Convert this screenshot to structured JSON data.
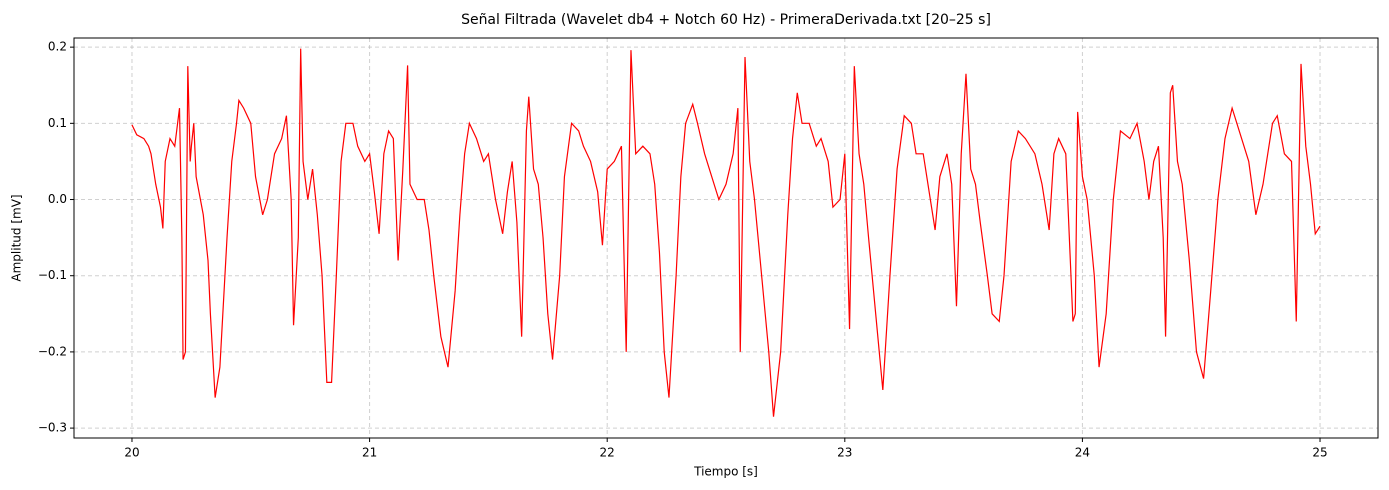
{
  "chart_data": {
    "type": "line",
    "title": "Señal Filtrada (Wavelet db4 + Notch 60 Hz) - PrimeraDerivada.txt [20–25 s]",
    "x_label": "Tiempo [s]",
    "y_label": "Amplitud [mV]",
    "xlim": [
      19.756,
      25.244
    ],
    "ylim": [
      -0.313,
      0.212
    ],
    "xticks": [
      20,
      21,
      22,
      23,
      24,
      25
    ],
    "yticks": [
      {
        "value": -0.3,
        "label": "−0.3"
      },
      {
        "value": -0.2,
        "label": "−0.2"
      },
      {
        "value": -0.1,
        "label": "−0.1"
      },
      {
        "value": 0,
        "label": "0.0"
      },
      0.1,
      0.2
    ],
    "grid": true,
    "x": [
      20.0,
      20.02,
      20.05,
      20.07,
      20.08,
      20.1,
      20.12,
      20.13,
      20.14,
      20.16,
      20.18,
      20.2,
      20.21,
      20.215,
      20.225,
      20.235,
      20.245,
      20.25,
      20.26,
      20.27,
      20.3,
      20.32,
      20.33,
      20.35,
      20.37,
      20.4,
      20.42,
      20.44,
      20.45,
      20.47,
      20.5,
      20.52,
      20.55,
      20.57,
      20.6,
      20.63,
      20.65,
      20.67,
      20.68,
      20.7,
      20.71,
      20.72,
      20.74,
      20.76,
      20.78,
      20.8,
      20.82,
      20.84,
      20.86,
      20.88,
      20.9,
      20.93,
      20.95,
      20.98,
      21.0,
      21.02,
      21.04,
      21.06,
      21.08,
      21.1,
      21.12,
      21.14,
      21.16,
      21.17,
      21.2,
      21.23,
      21.25,
      21.27,
      21.3,
      21.33,
      21.36,
      21.38,
      21.4,
      21.42,
      21.45,
      21.48,
      21.5,
      21.53,
      21.56,
      21.58,
      21.6,
      21.62,
      21.64,
      21.66,
      21.67,
      21.69,
      21.71,
      21.73,
      21.75,
      21.77,
      21.8,
      21.82,
      21.85,
      21.88,
      21.9,
      21.93,
      21.96,
      21.98,
      22.0,
      22.03,
      22.06,
      22.08,
      22.1,
      22.12,
      22.15,
      22.18,
      22.2,
      22.22,
      22.24,
      22.26,
      22.29,
      22.31,
      22.33,
      22.36,
      22.38,
      22.41,
      22.44,
      22.47,
      22.5,
      22.53,
      22.55,
      22.56,
      22.58,
      22.6,
      22.62,
      22.65,
      22.68,
      22.7,
      22.73,
      22.76,
      22.78,
      22.8,
      22.82,
      22.85,
      22.88,
      22.9,
      22.93,
      22.95,
      22.98,
      23.0,
      23.02,
      23.04,
      23.06,
      23.08,
      23.1,
      23.13,
      23.16,
      23.19,
      23.22,
      23.25,
      23.28,
      23.3,
      23.33,
      23.36,
      23.38,
      23.4,
      23.43,
      23.45,
      23.47,
      23.49,
      23.51,
      23.53,
      23.55,
      23.57,
      23.6,
      23.62,
      23.65,
      23.67,
      23.7,
      23.73,
      23.76,
      23.8,
      23.83,
      23.86,
      23.88,
      23.9,
      23.93,
      23.96,
      23.97,
      23.98,
      24.0,
      24.02,
      24.05,
      24.07,
      24.1,
      24.13,
      24.16,
      24.2,
      24.23,
      24.26,
      24.28,
      24.3,
      24.32,
      24.34,
      24.35,
      24.37,
      24.38,
      24.4,
      24.42,
      24.45,
      24.48,
      24.51,
      24.54,
      24.57,
      24.6,
      24.63,
      24.65,
      24.68,
      24.7,
      24.73,
      24.76,
      24.78,
      24.8,
      24.82,
      24.85,
      24.88,
      24.9,
      24.92,
      24.94,
      24.96,
      24.98,
      25.0
    ],
    "series": [
      {
        "color": "#ff0000",
        "values": [
          0.098,
          0.085,
          0.08,
          0.07,
          0.06,
          0.02,
          -0.01,
          -0.038,
          0.05,
          0.08,
          0.07,
          0.12,
          -0.05,
          -0.21,
          -0.2,
          0.175,
          0.05,
          0.07,
          0.1,
          0.03,
          -0.02,
          -0.08,
          -0.15,
          -0.26,
          -0.22,
          -0.05,
          0.05,
          0.1,
          0.13,
          0.12,
          0.1,
          0.03,
          -0.02,
          0.0,
          0.06,
          0.08,
          0.11,
          0.0,
          -0.165,
          -0.05,
          0.198,
          0.05,
          0.0,
          0.04,
          -0.02,
          -0.1,
          -0.24,
          -0.24,
          -0.1,
          0.05,
          0.1,
          0.1,
          0.07,
          0.05,
          0.06,
          0.01,
          -0.045,
          0.06,
          0.09,
          0.08,
          -0.08,
          0.04,
          0.176,
          0.02,
          0.0,
          0.0,
          -0.04,
          -0.1,
          -0.18,
          -0.22,
          -0.12,
          -0.02,
          0.06,
          0.1,
          0.08,
          0.05,
          0.06,
          0.0,
          -0.045,
          0.01,
          0.05,
          -0.03,
          -0.18,
          0.09,
          0.135,
          0.04,
          0.02,
          -0.05,
          -0.15,
          -0.21,
          -0.1,
          0.03,
          0.1,
          0.09,
          0.07,
          0.05,
          0.01,
          -0.06,
          0.04,
          0.05,
          0.07,
          -0.2,
          0.196,
          0.06,
          0.07,
          0.06,
          0.02,
          -0.07,
          -0.2,
          -0.26,
          -0.1,
          0.03,
          0.1,
          0.125,
          0.1,
          0.06,
          0.03,
          0.0,
          0.02,
          0.06,
          0.12,
          -0.2,
          0.187,
          0.05,
          0.0,
          -0.1,
          -0.2,
          -0.285,
          -0.2,
          -0.02,
          0.08,
          0.14,
          0.1,
          0.1,
          0.07,
          0.08,
          0.05,
          -0.01,
          0.0,
          0.06,
          -0.17,
          0.175,
          0.06,
          0.02,
          -0.05,
          -0.15,
          -0.25,
          -0.1,
          0.04,
          0.11,
          0.1,
          0.06,
          0.06,
          0.0,
          -0.04,
          0.03,
          0.06,
          0.02,
          -0.14,
          0.06,
          0.165,
          0.04,
          0.02,
          -0.03,
          -0.1,
          -0.15,
          -0.16,
          -0.1,
          0.05,
          0.09,
          0.08,
          0.06,
          0.02,
          -0.04,
          0.06,
          0.08,
          0.06,
          -0.16,
          -0.15,
          0.115,
          0.03,
          0.0,
          -0.1,
          -0.22,
          -0.15,
          0.0,
          0.09,
          0.08,
          0.1,
          0.05,
          0.0,
          0.05,
          0.07,
          -0.05,
          -0.18,
          0.14,
          0.15,
          0.05,
          0.02,
          -0.08,
          -0.2,
          -0.235,
          -0.12,
          0.0,
          0.08,
          0.12,
          0.1,
          0.07,
          0.05,
          -0.02,
          0.02,
          0.06,
          0.1,
          0.11,
          0.06,
          0.05,
          -0.16,
          0.178,
          0.07,
          0.02,
          -0.045,
          -0.035
        ]
      }
    ]
  }
}
